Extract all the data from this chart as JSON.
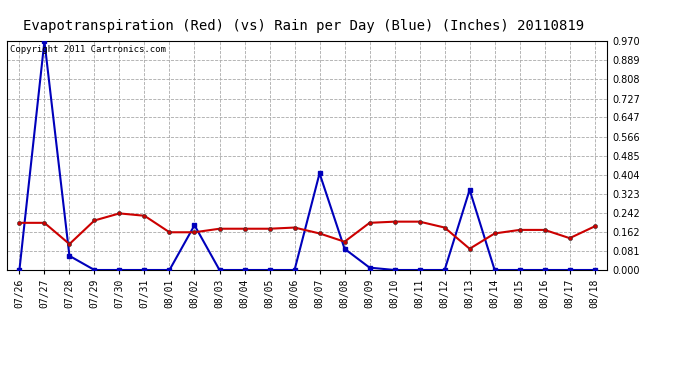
{
  "title": "Evapotranspiration (Red) (vs) Rain per Day (Blue) (Inches) 20110819",
  "copyright": "Copyright 2011 Cartronics.com",
  "labels": [
    "07/26",
    "07/27",
    "07/28",
    "07/29",
    "07/30",
    "07/31",
    "08/01",
    "08/02",
    "08/03",
    "08/04",
    "08/05",
    "08/06",
    "08/07",
    "08/08",
    "08/09",
    "08/10",
    "08/11",
    "08/12",
    "08/13",
    "08/14",
    "08/15",
    "08/16",
    "08/17",
    "08/18"
  ],
  "rain_blue": [
    0.0,
    0.97,
    0.06,
    0.0,
    0.0,
    0.0,
    0.0,
    0.19,
    0.0,
    0.0,
    0.0,
    0.0,
    0.41,
    0.09,
    0.01,
    0.0,
    0.0,
    0.0,
    0.34,
    0.0,
    0.0,
    0.0,
    0.0,
    0.0
  ],
  "et_red": [
    0.2,
    0.2,
    0.11,
    0.21,
    0.24,
    0.23,
    0.16,
    0.16,
    0.175,
    0.175,
    0.175,
    0.18,
    0.155,
    0.12,
    0.2,
    0.205,
    0.205,
    0.18,
    0.09,
    0.155,
    0.17,
    0.17,
    0.135,
    0.185
  ],
  "ylim": [
    0.0,
    0.97
  ],
  "yticks": [
    0.0,
    0.081,
    0.162,
    0.242,
    0.323,
    0.404,
    0.485,
    0.566,
    0.647,
    0.727,
    0.808,
    0.889,
    0.97
  ],
  "blue_color": "#0000bb",
  "red_color": "#cc0000",
  "bg_color": "#ffffff",
  "grid_color": "#aaaaaa",
  "title_fontsize": 10,
  "copyright_fontsize": 6.5,
  "tick_fontsize": 7
}
